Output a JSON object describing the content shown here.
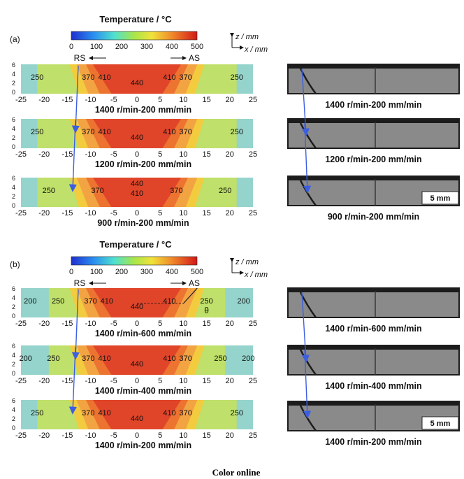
{
  "colors": {
    "cold": "#94d4cc",
    "warm": "#bfe06a",
    "c330": "#f3cb3f",
    "c370": "#f2a443",
    "c410": "#ec7330",
    "c440": "#e0452a",
    "arrow": "#3c5ee0",
    "photo_bg": "#8a8a8a",
    "photo_dark": "#1c1c1c"
  },
  "colorbar": {
    "title": "Temperature / °C",
    "ticks": [
      "0",
      "100",
      "200",
      "300",
      "400",
      "500"
    ]
  },
  "axis_legend": {
    "z": "z / mm",
    "x": "x / mm"
  },
  "y_ticks": [
    "6",
    "4",
    "2",
    "0"
  ],
  "x_ticks": [
    "-25",
    "-20",
    "-15",
    "-10",
    "-5",
    "0",
    "5",
    "10",
    "15",
    "20",
    "25"
  ],
  "sides": {
    "rs": "RS",
    "as": "AS"
  },
  "theta": "θ",
  "scale_bar": "5 mm",
  "footer": "Color online",
  "panels": [
    {
      "label": "(a)",
      "rows": [
        {
          "caption": "1400 r/min-200 mm/min",
          "photo_caption": "1400 r/min-200 mm/min",
          "labels": [
            "250",
            "370",
            "410",
            "440",
            "410",
            "370",
            "250"
          ]
        },
        {
          "caption": "1200 r/min-200 mm/min",
          "photo_caption": "1200 r/min-200 mm/min",
          "labels": [
            "250",
            "370",
            "410",
            "440",
            "410",
            "370",
            "250"
          ]
        },
        {
          "caption": "900 r/min-200 mm/min",
          "photo_caption": "900 r/min-200 mm/min",
          "labels": [
            "250",
            "370",
            "440",
            "410",
            "370",
            "250"
          ]
        }
      ]
    },
    {
      "label": "(b)",
      "rows": [
        {
          "caption": "1400 r/min-600 mm/min",
          "photo_caption": "1400 r/min-600 mm/min",
          "labels": [
            "200",
            "250",
            "370",
            "410",
            "440",
            "410",
            "250",
            "200"
          ]
        },
        {
          "caption": "1400 r/min-400 mm/min",
          "photo_caption": "1400 r/min-400 mm/min",
          "labels": [
            "200",
            "250",
            "370",
            "410",
            "440",
            "410",
            "370",
            "250",
            "200"
          ]
        },
        {
          "caption": "1400 r/min-200 mm/min",
          "photo_caption": "1400 r/min-200 mm/min",
          "labels": [
            "250",
            "370",
            "410",
            "440",
            "410",
            "370",
            "250"
          ]
        }
      ]
    }
  ]
}
